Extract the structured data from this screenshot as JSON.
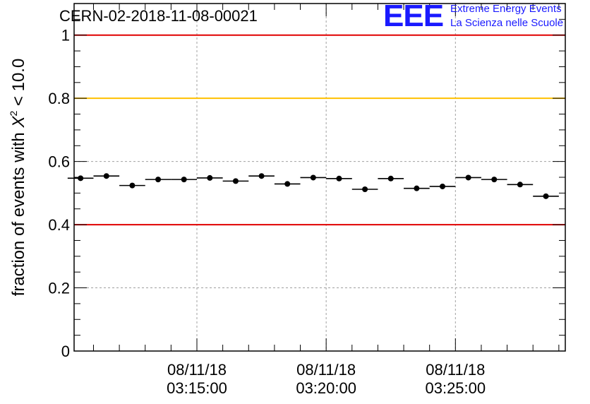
{
  "header": {
    "run_title": "CERN-02-2018-11-08-00021"
  },
  "logo": {
    "mark": "EEE",
    "line1": "Extreme Energy Events",
    "line2": "La Scienza nelle Scuole",
    "color": "#1a1aff"
  },
  "chart_data": {
    "type": "scatter",
    "ylabel_prefix": "fraction of events with ",
    "ylabel_symbol": "X",
    "ylabel_superscript": "2",
    "ylabel_suffix": " < 10.0",
    "ylim": [
      0,
      1.1
    ],
    "yticks": [
      {
        "value": 0,
        "label": "0"
      },
      {
        "value": 0.2,
        "label": "0.2"
      },
      {
        "value": 0.4,
        "label": "0.4"
      },
      {
        "value": 0.6,
        "label": "0.6"
      },
      {
        "value": 0.8,
        "label": "0.8"
      },
      {
        "value": 1,
        "label": "1"
      }
    ],
    "xlim_seconds": [
      -285,
      855
    ],
    "xticks": [
      {
        "seconds": 0,
        "line1": "08/11/18",
        "line2": "03:15:00"
      },
      {
        "seconds": 300,
        "line1": "08/11/18",
        "line2": "03:20:00"
      },
      {
        "seconds": 600,
        "line1": "08/11/18",
        "line2": "03:25:00"
      }
    ],
    "reference_lines": [
      {
        "y": 1.0,
        "color": "#e00000"
      },
      {
        "y": 0.8,
        "color": "#ffc000"
      },
      {
        "y": 0.4,
        "color": "#e00000"
      }
    ],
    "bin_half_width_seconds": 30,
    "x_seconds": [
      -270,
      -210,
      -150,
      -90,
      -30,
      30,
      90,
      150,
      210,
      270,
      330,
      390,
      450,
      510,
      570,
      630,
      690,
      750,
      810
    ],
    "y": [
      0.547,
      0.554,
      0.524,
      0.543,
      0.543,
      0.548,
      0.538,
      0.554,
      0.529,
      0.549,
      0.546,
      0.512,
      0.546,
      0.515,
      0.521,
      0.549,
      0.543,
      0.527,
      0.49
    ],
    "grid": true,
    "marker_color": "#000000"
  }
}
